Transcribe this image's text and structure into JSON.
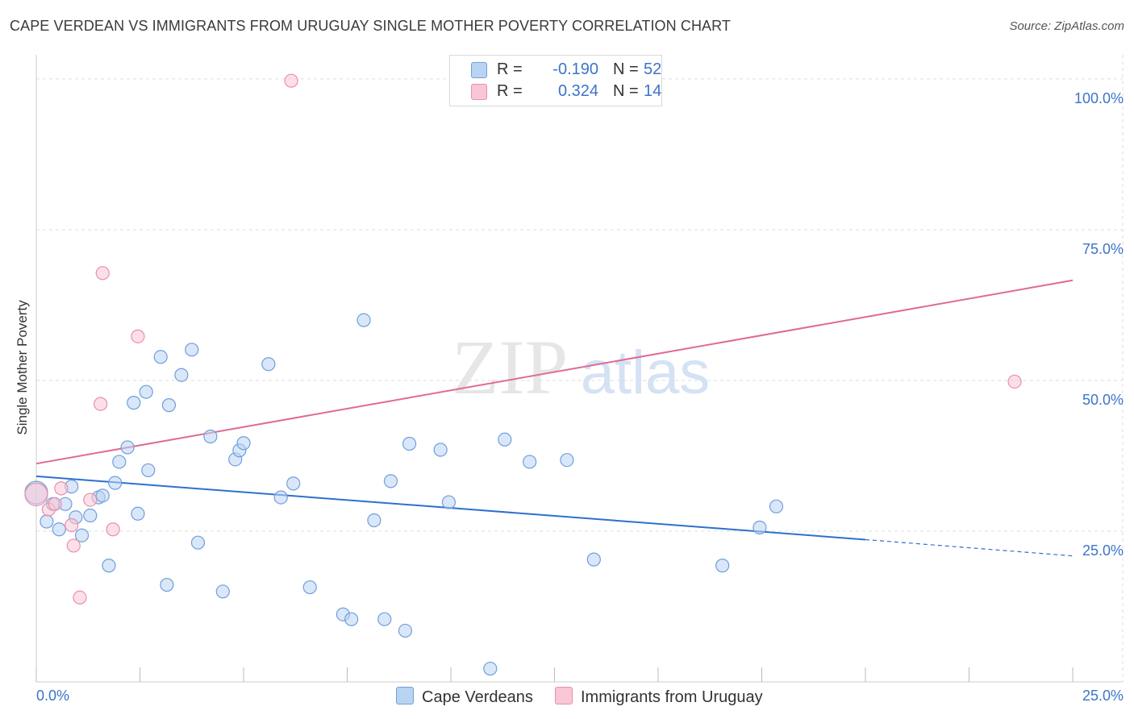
{
  "header": {
    "title": "CAPE VERDEAN VS IMMIGRANTS FROM URUGUAY SINGLE MOTHER POVERTY CORRELATION CHART",
    "source": "Source: ZipAtlas.com"
  },
  "watermark": {
    "zip": "ZIP",
    "atlas": "atlas"
  },
  "legend": {
    "r_label": "R =",
    "n_label": "N =",
    "blue": {
      "r": "-0.190",
      "n": "52"
    },
    "pink": {
      "r": "0.324",
      "n": "14"
    }
  },
  "colors": {
    "blue_fill": "#b9d3f3",
    "blue_stroke": "#6f9fdc",
    "blue_line": "#2f6fd0",
    "pink_fill": "#f9c6d6",
    "pink_stroke": "#ea8eab",
    "pink_line": "#e06a93",
    "tick_label": "#3b74c9",
    "grid": "#dddddd"
  },
  "chart_data": {
    "type": "scatter",
    "xlabel": "",
    "ylabel": "Single Mother Poverty",
    "xlim": [
      0,
      25
    ],
    "ylim": [
      0,
      104
    ],
    "x_tick_labels": [
      "0.0%",
      "25.0%"
    ],
    "y_ticks": [
      25,
      50,
      75,
      100
    ],
    "y_tick_labels": [
      "25.0%",
      "50.0%",
      "75.0%",
      "100.0%"
    ],
    "grid": true,
    "legend_position": "top-center",
    "series": [
      {
        "name": "Cape Verdeans",
        "r": -0.19,
        "n": 52,
        "trend": {
          "x": [
            0,
            20
          ],
          "y": [
            34.1,
            23.6
          ],
          "dashed_to_x": 25,
          "dashed_to_y": 20.9
        },
        "points": [
          [
            0.0,
            31.4
          ],
          [
            0.25,
            26.6
          ],
          [
            0.4,
            29.5
          ],
          [
            0.55,
            25.3
          ],
          [
            0.7,
            29.5
          ],
          [
            0.85,
            32.4
          ],
          [
            0.95,
            27.3
          ],
          [
            1.1,
            24.3
          ],
          [
            1.3,
            27.6
          ],
          [
            1.5,
            30.6
          ],
          [
            1.6,
            30.9
          ],
          [
            1.75,
            19.3
          ],
          [
            1.9,
            33.0
          ],
          [
            2.0,
            36.5
          ],
          [
            2.2,
            38.9
          ],
          [
            2.35,
            46.3
          ],
          [
            2.45,
            27.9
          ],
          [
            2.65,
            48.1
          ],
          [
            2.7,
            35.1
          ],
          [
            3.0,
            53.9
          ],
          [
            3.15,
            16.1
          ],
          [
            3.2,
            45.9
          ],
          [
            3.5,
            50.9
          ],
          [
            3.75,
            55.1
          ],
          [
            3.9,
            23.1
          ],
          [
            4.2,
            40.7
          ],
          [
            4.5,
            15.0
          ],
          [
            4.8,
            36.9
          ],
          [
            4.9,
            38.4
          ],
          [
            5.0,
            39.6
          ],
          [
            5.6,
            52.7
          ],
          [
            5.9,
            30.6
          ],
          [
            6.2,
            32.9
          ],
          [
            6.6,
            15.7
          ],
          [
            7.4,
            11.2
          ],
          [
            7.6,
            10.4
          ],
          [
            7.9,
            60.0
          ],
          [
            8.15,
            26.8
          ],
          [
            8.4,
            10.4
          ],
          [
            8.55,
            33.3
          ],
          [
            8.9,
            8.5
          ],
          [
            9.0,
            39.5
          ],
          [
            9.75,
            38.5
          ],
          [
            9.95,
            29.8
          ],
          [
            10.95,
            2.2
          ],
          [
            11.3,
            40.2
          ],
          [
            11.9,
            36.5
          ],
          [
            12.8,
            36.8
          ],
          [
            13.45,
            20.3
          ],
          [
            16.55,
            19.3
          ],
          [
            17.45,
            25.6
          ],
          [
            17.85,
            29.1
          ]
        ]
      },
      {
        "name": "Immigrants from Uruguay",
        "r": 0.324,
        "n": 14,
        "trend": {
          "x": [
            0,
            25
          ],
          "y": [
            36.2,
            66.6
          ]
        },
        "points": [
          [
            0.0,
            31.1
          ],
          [
            0.3,
            28.6
          ],
          [
            0.45,
            29.5
          ],
          [
            0.6,
            32.1
          ],
          [
            0.85,
            26.0
          ],
          [
            0.9,
            22.6
          ],
          [
            1.05,
            14.0
          ],
          [
            1.3,
            30.2
          ],
          [
            1.55,
            46.1
          ],
          [
            1.6,
            67.8
          ],
          [
            1.85,
            25.3
          ],
          [
            2.45,
            57.3
          ],
          [
            6.15,
            99.7
          ],
          [
            23.6,
            49.8
          ]
        ]
      }
    ]
  }
}
